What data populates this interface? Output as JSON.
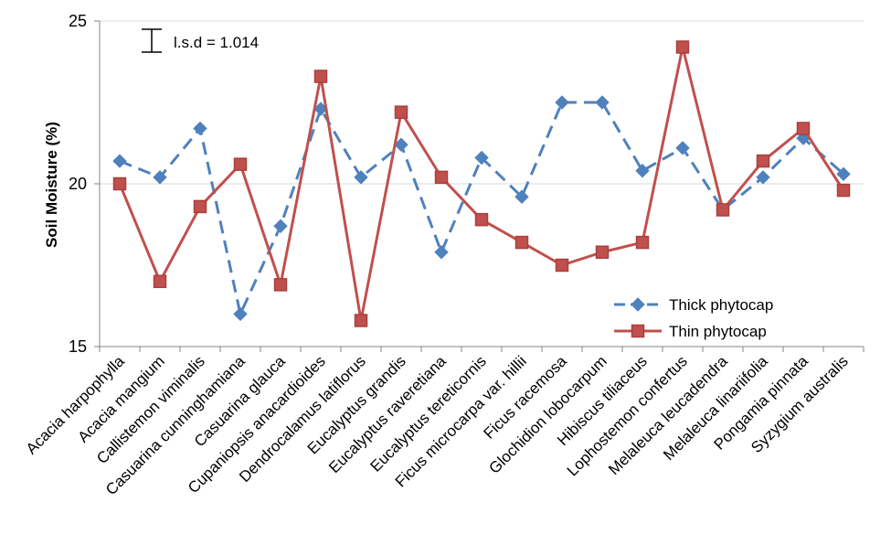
{
  "chart_data": {
    "type": "line",
    "title": "",
    "xlabel": "",
    "ylabel": "Soil Moisture (%)",
    "ylim": [
      15,
      25
    ],
    "yticks": [
      15,
      20,
      25
    ],
    "grid": true,
    "legend_position": "bottom-right",
    "annotation": "l.s.d = 1.014",
    "lsd": 1.014,
    "categories": [
      "Acacia harpophylla",
      "Acacia mangium",
      "Callistemon viminalis",
      "Casuarina cunninghamiana",
      "Casuarina glauca",
      "Cupaniopsis anacardioides",
      "Dendrocalamus latiflorus",
      "Eucalyptus grandis",
      "Eucalyptus raveretiana",
      "Eucalyptus tereticornis",
      "Ficus microcarpa var. hillii",
      "Ficus racemosa",
      "Glochidion lobocarpum",
      "Hibiscus tiliaceus",
      "Lophostemon confertus",
      "Melaleuca leucadendra",
      "Melaleuca linariifolia",
      "Pongamia pinnata",
      "Syzygium australis"
    ],
    "series": [
      {
        "name": "Thick phytocap",
        "color": "#4F81BD",
        "marker": "diamond",
        "dash": "dashed",
        "values": [
          20.7,
          20.2,
          21.7,
          16.0,
          18.7,
          22.3,
          20.2,
          21.2,
          17.9,
          20.8,
          19.6,
          22.5,
          22.5,
          20.4,
          21.1,
          19.2,
          20.2,
          21.4,
          20.3
        ]
      },
      {
        "name": "Thin phytocap",
        "color": "#C0504D",
        "marker": "square",
        "dash": "solid",
        "values": [
          20.0,
          17.0,
          19.3,
          20.6,
          16.9,
          23.3,
          15.8,
          22.2,
          20.2,
          18.9,
          18.2,
          17.5,
          17.9,
          18.2,
          24.2,
          19.2,
          20.7,
          21.7,
          19.8
        ]
      }
    ]
  }
}
